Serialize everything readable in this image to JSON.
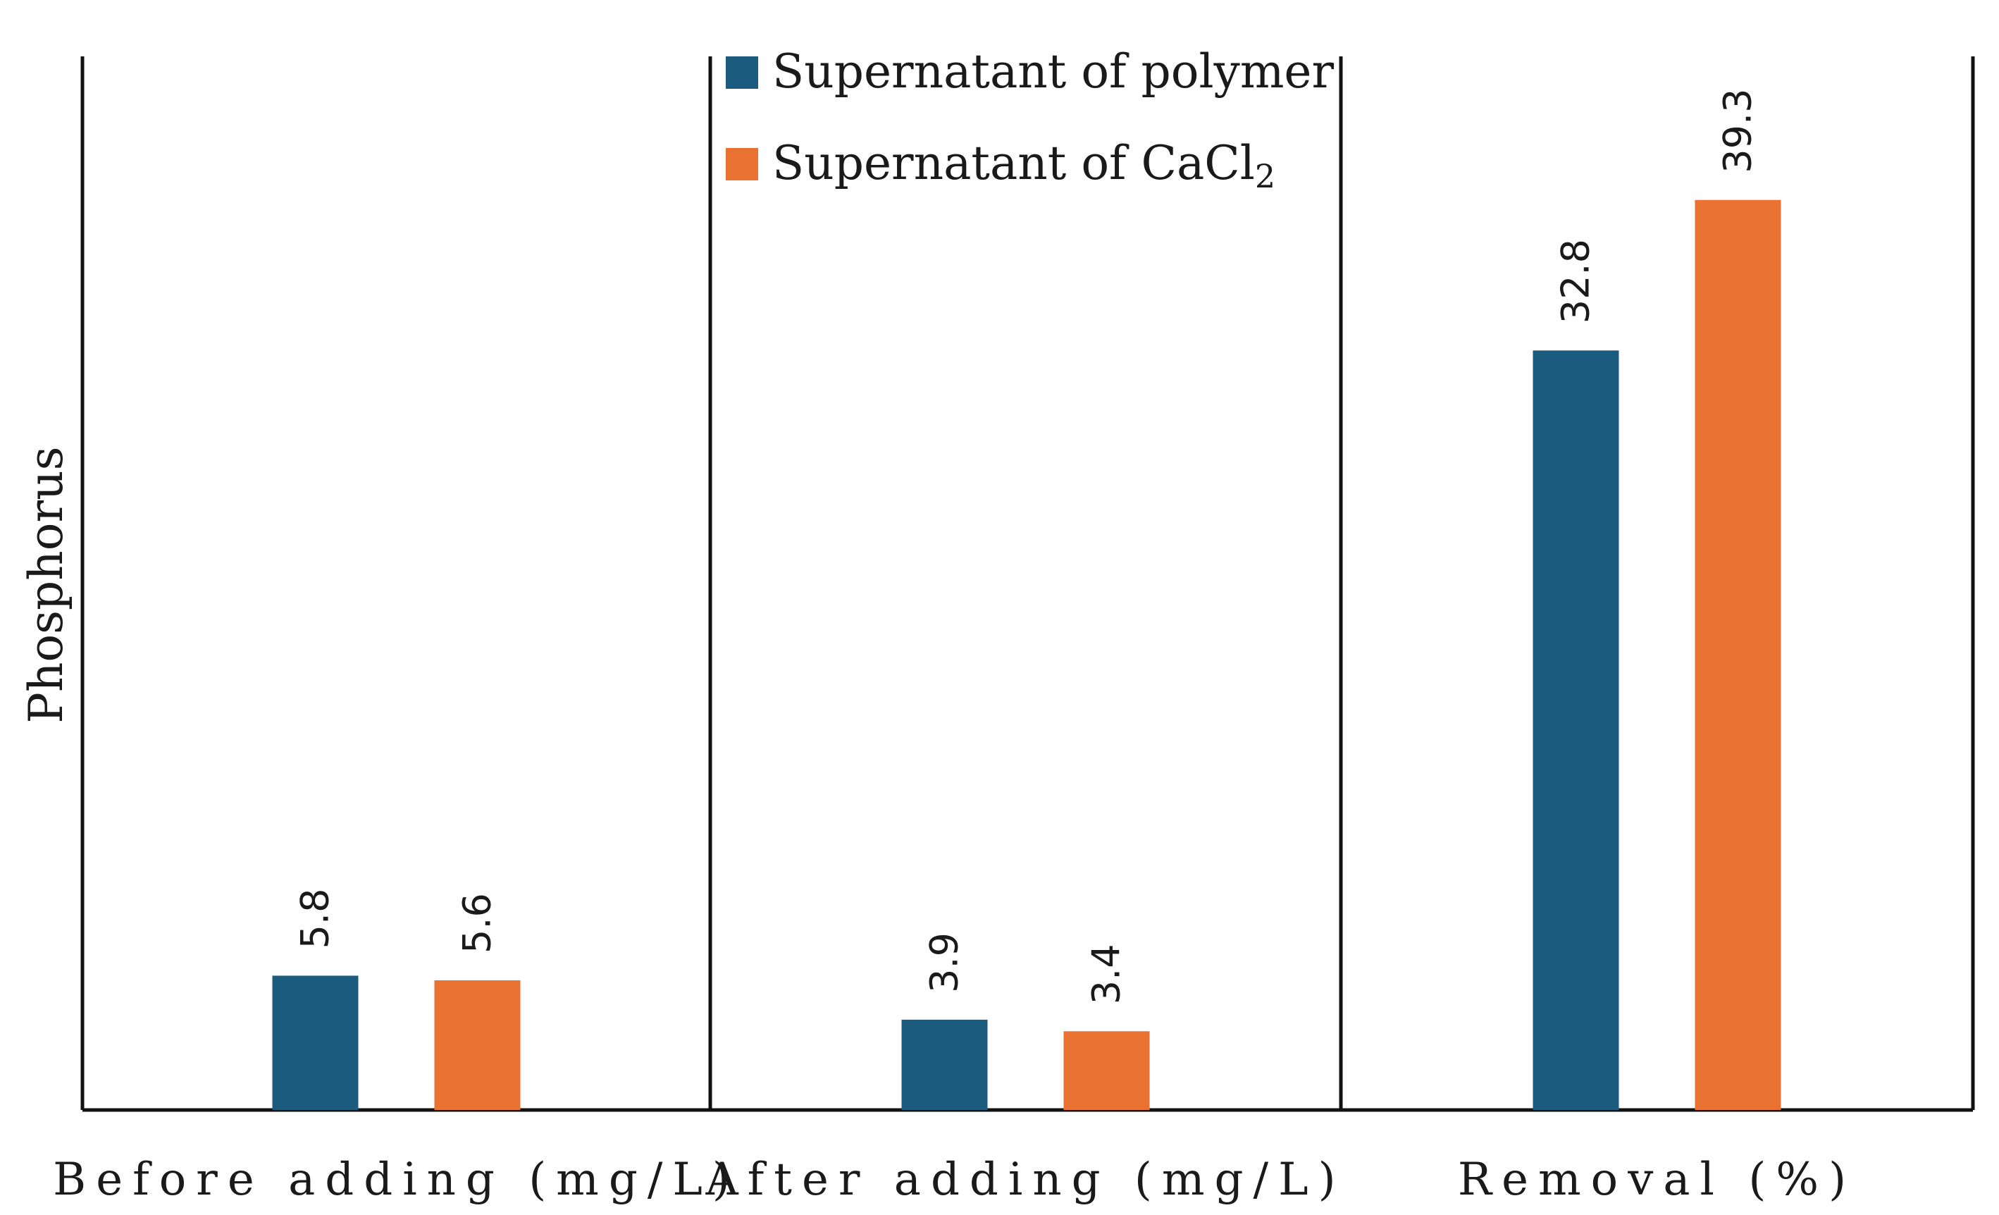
{
  "chart_data": {
    "type": "bar",
    "title": "",
    "xlabel": "",
    "ylabel": "Phosphorus",
    "categories": [
      "Before adding (mg/L)",
      "After adding (mg/L)",
      "Removal (%)"
    ],
    "series": [
      {
        "name": "Supernatant of polymer",
        "color": "#1a5b7e",
        "values": [
          5.8,
          3.9,
          32.8
        ]
      },
      {
        "name": "Supernatant of CaCl₂",
        "color": "#e97132",
        "values": [
          5.6,
          3.4,
          39.3
        ]
      }
    ],
    "legend": {
      "items": [
        {
          "main": "Supernatant of polymer",
          "sub": ""
        },
        {
          "main": "Supernatant of CaCl",
          "sub": "2"
        }
      ],
      "placement": "top-center"
    },
    "ylim": [
      0,
      45.5
    ],
    "grid": false
  }
}
